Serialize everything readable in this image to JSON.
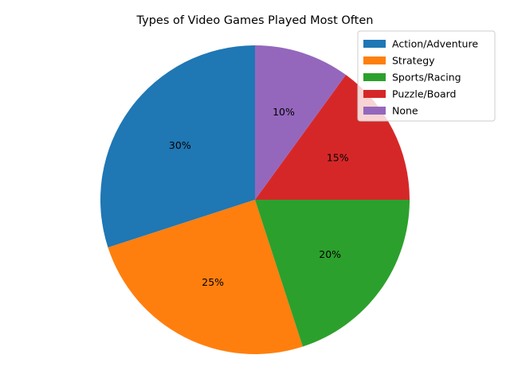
{
  "chart_data": {
    "type": "pie",
    "title": "Types of Video Games Played Most Often",
    "categories": [
      "Action/Adventure",
      "Strategy",
      "Sports/Racing",
      "Puzzle/Board",
      "None"
    ],
    "values": [
      30,
      25,
      20,
      15,
      10
    ],
    "labels": [
      "30%",
      "25%",
      "20%",
      "15%",
      "10%"
    ],
    "colors": [
      "#1f77b4",
      "#ff7f0e",
      "#2ca02c",
      "#d62728",
      "#9467bd"
    ],
    "start_angle_deg": 90,
    "direction": "counterclockwise",
    "legend_position": "top-right"
  }
}
